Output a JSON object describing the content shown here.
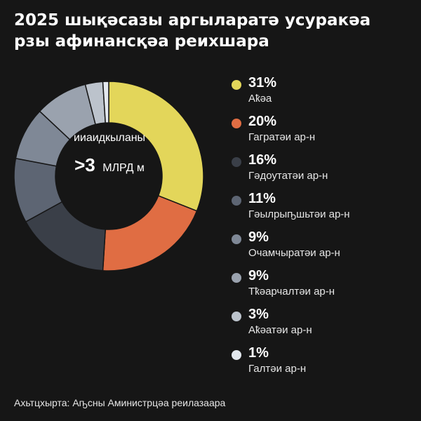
{
  "title": "2025 шықәсазы аргыларатә усуракәа рзы афинансқәа реихшара",
  "source": "Ахьтцхырта: Аҧсны Аминистрцәа реилазаара",
  "center": {
    "label": "ииаидкыланы",
    "value": ">3",
    "unit": "МЛРД м"
  },
  "chart_data": {
    "type": "pie",
    "categories": [
      "Аҟәа",
      "Гагратәи ар-н",
      "Гәдоутатәи ар-н",
      "Гәылрыҧшьтәи ар-н",
      "Очамчыратәи ар-н",
      "Тҟәарчалтәи ар-н",
      "Аҟәатәи ар-н",
      "Галтәи ар-н"
    ],
    "values": [
      31,
      20,
      16,
      11,
      9,
      9,
      3,
      1
    ],
    "labels": [
      "31%",
      "20%",
      "16%",
      "11%",
      "9%",
      "9%",
      "3%",
      "1%"
    ],
    "colors": [
      "#e3d65a",
      "#e06d43",
      "#3a3f48",
      "#5d6573",
      "#7f8896",
      "#9aa2ae",
      "#bcc3cc",
      "#e3e8ee"
    ],
    "legend": "right"
  }
}
